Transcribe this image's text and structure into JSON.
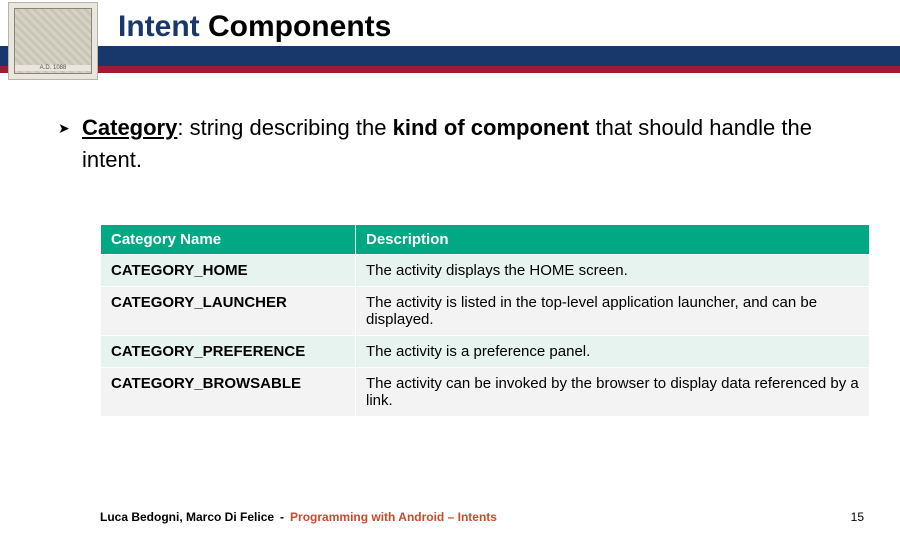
{
  "title": {
    "part1": "Intent",
    "part2": " Components"
  },
  "logo": {
    "caption": "A.D. 1088"
  },
  "bullet": {
    "category_label": "Category",
    "middle": ": string describing the ",
    "kind_label": "kind of component",
    "tail": " that should handle the intent."
  },
  "table": {
    "headers": [
      "Category Name",
      "Description"
    ],
    "rows": [
      [
        "CATEGORY_HOME",
        "The activity displays the HOME screen."
      ],
      [
        "CATEGORY_LAUNCHER",
        "The activity is listed in the top-level application launcher, and can be displayed."
      ],
      [
        "CATEGORY_PREFERENCE",
        "The activity is a preference panel."
      ],
      [
        "CATEGORY_BROWSABLE",
        "The activity can be invoked by the browser to display data referenced by a link."
      ]
    ]
  },
  "footer": {
    "authors": "Luca Bedogni, Marco Di Felice",
    "dash": "-",
    "topic": "Programming with Android – Intents",
    "page": "15"
  },
  "colors": {
    "header_bar": "#18376b",
    "header_underline": "#9e1b32",
    "table_header_bg": "#00a884",
    "row_odd": "#e6f3ef",
    "row_even": "#f4f3f3",
    "footer_topic": "#c94b2a"
  }
}
